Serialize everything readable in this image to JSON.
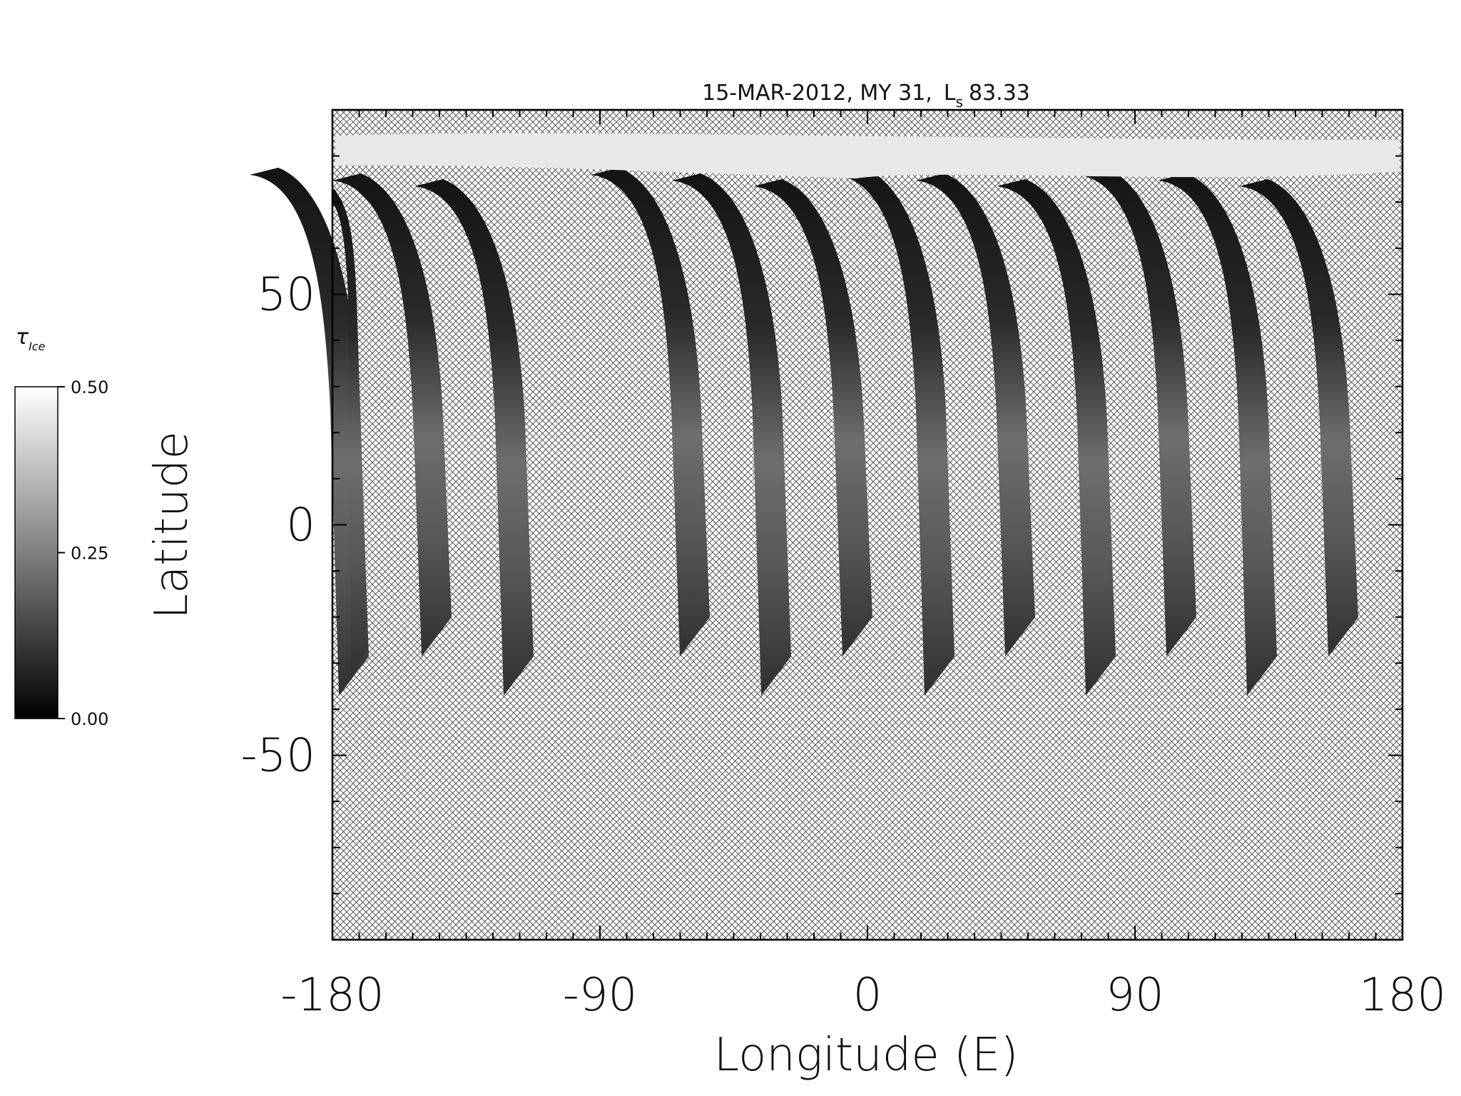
{
  "chart_data": {
    "type": "map",
    "title": "15-MAR-2012, MY 31,",
    "title_symbol": "L",
    "title_symbol_sub": "s",
    "title_value": "83.33",
    "x_label": "Longitude (E)",
    "y_label": "Latitude",
    "xlim": [
      -180,
      180
    ],
    "ylim": [
      -90,
      90
    ],
    "xticks": [
      -180,
      -90,
      0,
      90,
      180
    ],
    "yticks": [
      -50,
      0,
      50
    ],
    "x_minor_ticks": [
      -171,
      -162,
      -153,
      -144,
      -135,
      -126,
      -117,
      -108,
      -99,
      -81,
      -72,
      -63,
      -54,
      -45,
      -36,
      -27,
      -18,
      -9,
      9,
      18,
      27,
      36,
      45,
      54,
      63,
      72,
      81,
      99,
      108,
      117,
      126,
      135,
      144,
      153,
      162,
      171
    ],
    "y_minor_ticks": [
      -80,
      -70,
      -60,
      -40,
      -30,
      -20,
      -10,
      10,
      20,
      30,
      40,
      60,
      70,
      80
    ],
    "colorbar": {
      "label": "τ",
      "label_sub": "Ice",
      "lim": [
        0,
        0.5
      ],
      "ticks": [
        {
          "value": 0,
          "label": "0.00"
        },
        {
          "value": 0.25,
          "label": "0.25"
        },
        {
          "value": 0.5,
          "label": "0.50"
        }
      ]
    }
  }
}
